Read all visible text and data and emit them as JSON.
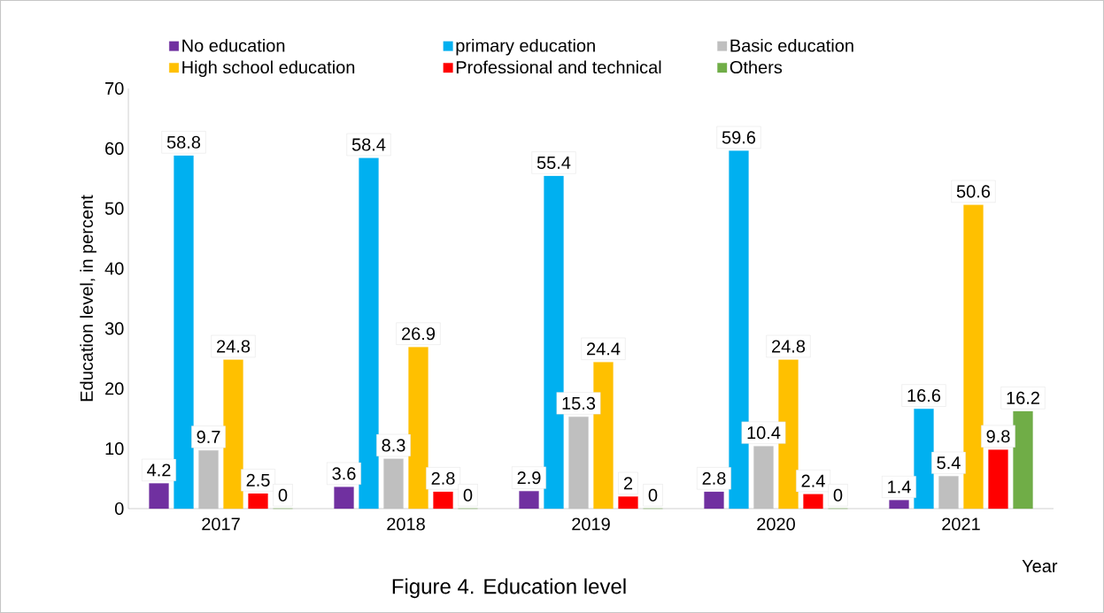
{
  "chart_data": {
    "type": "bar",
    "title": "Figure 4. Education level",
    "xlabel": "Year",
    "ylabel": "Education level, in percent",
    "categories": [
      "2017",
      "2018",
      "2019",
      "2020",
      "2021"
    ],
    "series": [
      {
        "name": "No education",
        "color": "#7030a0",
        "values": [
          4.2,
          3.6,
          2.9,
          2.8,
          1.4
        ],
        "value_labels": [
          "4.2",
          "3.6",
          "2.9",
          "2.8",
          "1.4"
        ]
      },
      {
        "name": "primary education",
        "color": "#00b0f0",
        "values": [
          58.8,
          58.4,
          55.4,
          59.6,
          16.6
        ],
        "value_labels": [
          "58.8",
          "58.4",
          "55.4",
          "59.6",
          "16.6"
        ]
      },
      {
        "name": "Basic education",
        "color": "#bfbfbf",
        "values": [
          9.7,
          8.3,
          15.3,
          10.4,
          5.4
        ],
        "value_labels": [
          "9.7",
          "8.3",
          "15.3",
          "10.4",
          "5.4"
        ]
      },
      {
        "name": "High school education",
        "color": "#ffc000",
        "values": [
          24.8,
          26.9,
          24.4,
          24.8,
          50.6
        ],
        "value_labels": [
          "24.8",
          "26.9",
          "24.4",
          "24.8",
          "50.6"
        ]
      },
      {
        "name": "Professional and technical",
        "color": "#ff0000",
        "values": [
          2.5,
          2.8,
          2,
          2.4,
          9.8
        ],
        "value_labels": [
          "2.5",
          "2.8",
          "2",
          "2.4",
          "9.8"
        ]
      },
      {
        "name": "Others",
        "color": "#70ad47",
        "values": [
          0,
          0,
          0,
          0,
          16.2
        ],
        "value_labels": [
          "0",
          "0",
          "0",
          "0",
          "16.2"
        ]
      }
    ],
    "ylim": [
      0,
      70
    ],
    "yticks": [
      0,
      10,
      20,
      30,
      40,
      50,
      60,
      70
    ],
    "grid": false,
    "legend": "top"
  }
}
